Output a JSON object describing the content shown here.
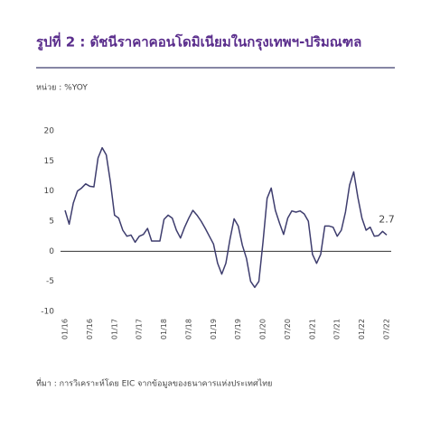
{
  "chart_data": {
    "type": "line",
    "title": "รูปที่ 2 : ดัชนีราคาคอนโดมิเนียมในกรุงเทพฯ-ปริมณฑล",
    "unit": "หน่วย : %YOY",
    "source": "ที่มา : การวิเคราะห์โดย EIC จากข้อมูลของธนาคารแห่งประเทศไทย",
    "categories": [
      "01/16",
      null,
      null,
      null,
      null,
      null,
      "07/16",
      null,
      null,
      null,
      null,
      null,
      "01/17",
      null,
      null,
      null,
      null,
      null,
      "07/17",
      null,
      null,
      null,
      null,
      null,
      "01/18",
      null,
      null,
      null,
      null,
      null,
      "07/18",
      null,
      null,
      null,
      null,
      null,
      "01/19",
      null,
      null,
      null,
      null,
      null,
      "07/19",
      null,
      null,
      null,
      null,
      null,
      "01/20",
      null,
      null,
      null,
      null,
      null,
      "07/20",
      null,
      null,
      null,
      null,
      null,
      "01/21",
      null,
      null,
      null,
      null,
      null,
      "07/21",
      null,
      null,
      null,
      null,
      null,
      "01/22",
      null,
      null,
      null,
      null,
      null,
      "07/22"
    ],
    "values": [
      6.8,
      4.5,
      8,
      10,
      10.5,
      11.2,
      10.8,
      10.7,
      15.5,
      17.2,
      16,
      11.5,
      6,
      5.5,
      3.5,
      2.5,
      2.7,
      1.5,
      2.5,
      2.8,
      3.8,
      1.7,
      1.7,
      1.7,
      5.3,
      6,
      5.5,
      3.5,
      2.2,
      4,
      5.5,
      6.8,
      6,
      5,
      3.8,
      2.5,
      1.2,
      -2,
      -3.8,
      -2,
      2,
      5.4,
      4.2,
      1,
      -1.2,
      -5,
      -6,
      -5,
      1.5,
      8.8,
      10.5,
      6.8,
      4.7,
      2.8,
      5.5,
      6.7,
      6.5,
      6.7,
      6.2,
      5,
      -0.5,
      -2,
      -0.5,
      4.2,
      4.2,
      4,
      2.5,
      3.5,
      6.5,
      11,
      13.2,
      9,
      5.5,
      3.5,
      4,
      2.5,
      2.6,
      3.3,
      2.7
    ],
    "color": "#3e3d6e",
    "ylim": [
      -10,
      20
    ],
    "yticks": [
      -10,
      -5,
      0,
      5,
      10,
      15,
      20
    ]
  }
}
